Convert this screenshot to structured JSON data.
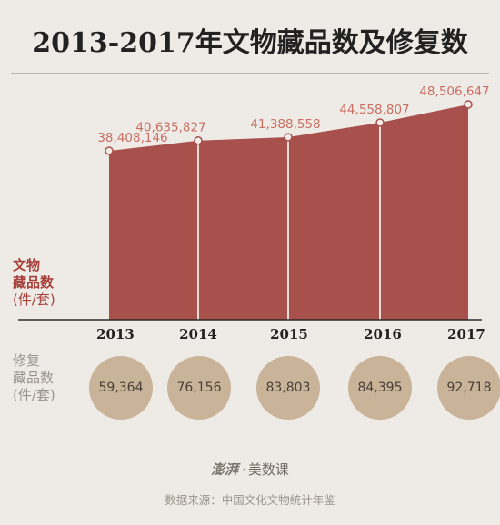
{
  "title": "2013-2017年文物藏品数及修复数",
  "collection_label": {
    "line1": "文物",
    "line2": "藏品数",
    "unit": "(件/套)"
  },
  "restoration_label": {
    "line1": "修复",
    "line2": "藏品数",
    "unit": "(件/套)"
  },
  "chart_data": {
    "type": "area",
    "title": "2013-2017年文物藏品数及修复数",
    "categories": [
      "2013",
      "2014",
      "2015",
      "2016",
      "2017"
    ],
    "series": [
      {
        "name": "文物藏品数",
        "values": [
          38408146,
          40635827,
          41388558,
          44558807,
          48506647
        ],
        "labels": [
          "38,408,146",
          "40,635,827",
          "41,388,558",
          "44,558,807",
          "48,506,647"
        ]
      },
      {
        "name": "修复藏品数",
        "values": [
          59364,
          76156,
          83803,
          84395,
          92718
        ],
        "labels": [
          "59,364",
          "76,156",
          "83,803",
          "84,395",
          "92,718"
        ]
      }
    ],
    "colors": {
      "area": "#a8504c",
      "divider": "#e9dcd6",
      "circle": "#c9b49a",
      "axis": "#2b2b2b"
    }
  },
  "logo": {
    "brand": "澎湃",
    "sub": "美数课"
  },
  "source": "数据来源：中国文化文物统计年鉴"
}
